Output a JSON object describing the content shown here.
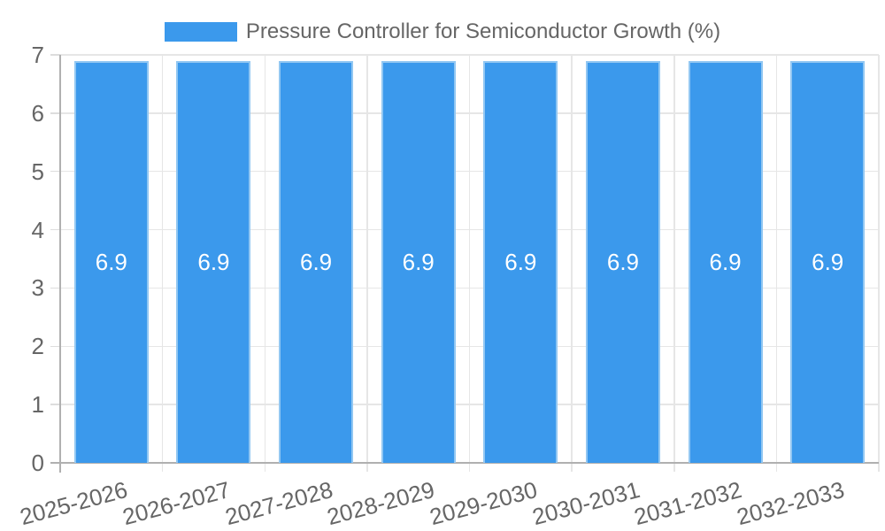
{
  "chart_data": {
    "type": "bar",
    "title": "Pressure Controller for Semiconductor Growth (%)",
    "categories": [
      "2025-2026",
      "2026-2027",
      "2027-2028",
      "2028-2029",
      "2029-2030",
      "2030-2031",
      "2031-2032",
      "2032-2033"
    ],
    "values": [
      6.9,
      6.9,
      6.9,
      6.9,
      6.9,
      6.9,
      6.9,
      6.9
    ],
    "bar_value_labels": [
      "6.9",
      "6.9",
      "6.9",
      "6.9",
      "6.9",
      "6.9",
      "6.9",
      "6.9"
    ],
    "xlabel": "",
    "ylabel": "",
    "ylim": [
      0,
      7
    ],
    "yticks": [
      0,
      1,
      2,
      3,
      4,
      5,
      6,
      7
    ],
    "grid": true,
    "legend_position": "top",
    "colors": {
      "bar": "#3B99EC",
      "bar_border": "#92C7F2",
      "bar_label_text": "#FFFFFF",
      "text": "#666666",
      "grid": "#E6E6E6",
      "tick": "#DDDDDD",
      "axis": "#B0B0B0",
      "background": "#FFFFFF"
    }
  }
}
